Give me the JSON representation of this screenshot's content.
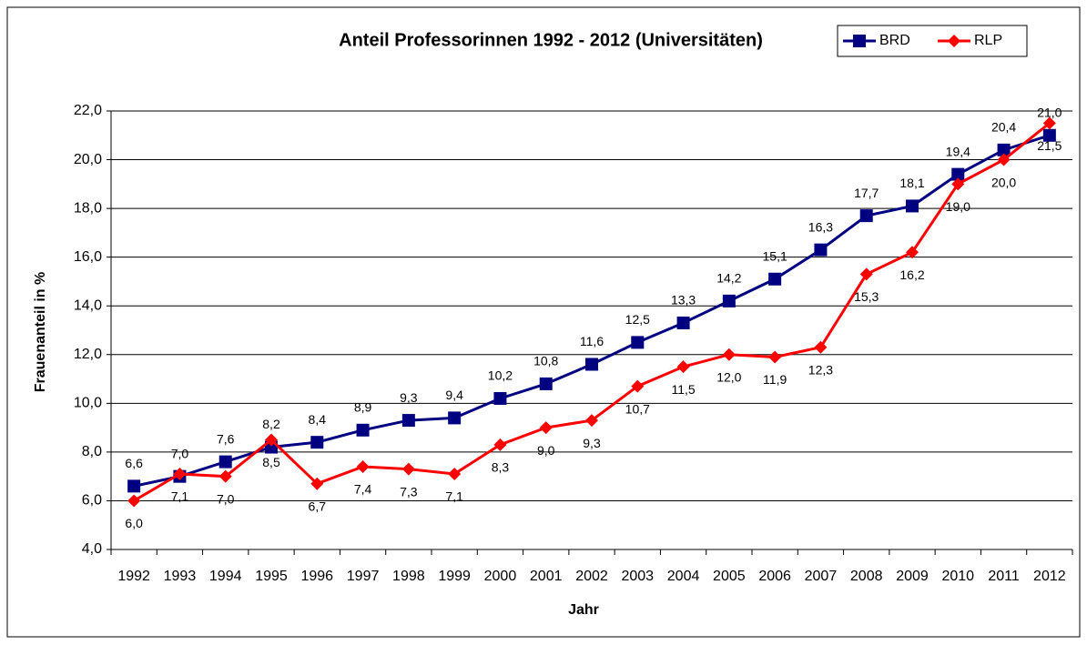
{
  "chart_data": {
    "type": "line",
    "title": "Anteil Professorinnen 1992 - 2012 (Universitäten)",
    "x_label": "Jahr",
    "y_label": "Frauenanteil in %",
    "categories": [
      "1992",
      "1993",
      "1994",
      "1995",
      "1996",
      "1997",
      "1998",
      "1999",
      "2000",
      "2001",
      "2002",
      "2003",
      "2004",
      "2005",
      "2006",
      "2007",
      "2008",
      "2009",
      "2010",
      "2011",
      "2012"
    ],
    "series": [
      {
        "name": "BRD",
        "color": "#000080",
        "values": [
          6.6,
          7.0,
          7.6,
          8.2,
          8.4,
          8.9,
          9.3,
          9.4,
          10.2,
          10.8,
          11.6,
          12.5,
          13.3,
          14.2,
          15.1,
          16.3,
          17.7,
          18.1,
          19.4,
          20.4,
          21.0
        ],
        "value_labels": [
          "6,6",
          "7,0",
          "7,6",
          "8,2",
          "8,4",
          "8,9",
          "9,3",
          "9,4",
          "10,2",
          "10,8",
          "11,6",
          "12,5",
          "13,3",
          "14,2",
          "15,1",
          "16,3",
          "17,7",
          "18,1",
          "19,4",
          "20,4",
          "21,0"
        ]
      },
      {
        "name": "RLP",
        "color": "#ff0000",
        "values": [
          6.0,
          7.1,
          7.0,
          8.5,
          6.7,
          7.4,
          7.3,
          7.1,
          8.3,
          9.0,
          9.3,
          10.7,
          11.5,
          12.0,
          11.9,
          12.3,
          15.3,
          16.2,
          19.0,
          20.0,
          21.5
        ],
        "value_labels": [
          "6,0",
          "7,1",
          "7,0",
          "8,5",
          "6,7",
          "7,4",
          "7,3",
          "7,1",
          "8,3",
          "9,0",
          "9,3",
          "10,7",
          "11,5",
          "12,0",
          "11,9",
          "12,3",
          "15,3",
          "16,2",
          "19,0",
          "20,0",
          "21,5"
        ]
      }
    ],
    "ylim": [
      4,
      22
    ],
    "yticks": [
      {
        "value": 4,
        "label": "4,0"
      },
      {
        "value": 6,
        "label": "6,0"
      },
      {
        "value": 8,
        "label": "8,0"
      },
      {
        "value": 10,
        "label": "10,0"
      },
      {
        "value": 12,
        "label": "12,0"
      },
      {
        "value": 14,
        "label": "14,0"
      },
      {
        "value": 16,
        "label": "16,0"
      },
      {
        "value": 18,
        "label": "18,0"
      },
      {
        "value": 20,
        "label": "20,0"
      },
      {
        "value": 22,
        "label": "22,0"
      }
    ],
    "grid": true,
    "legend": "top-right"
  }
}
